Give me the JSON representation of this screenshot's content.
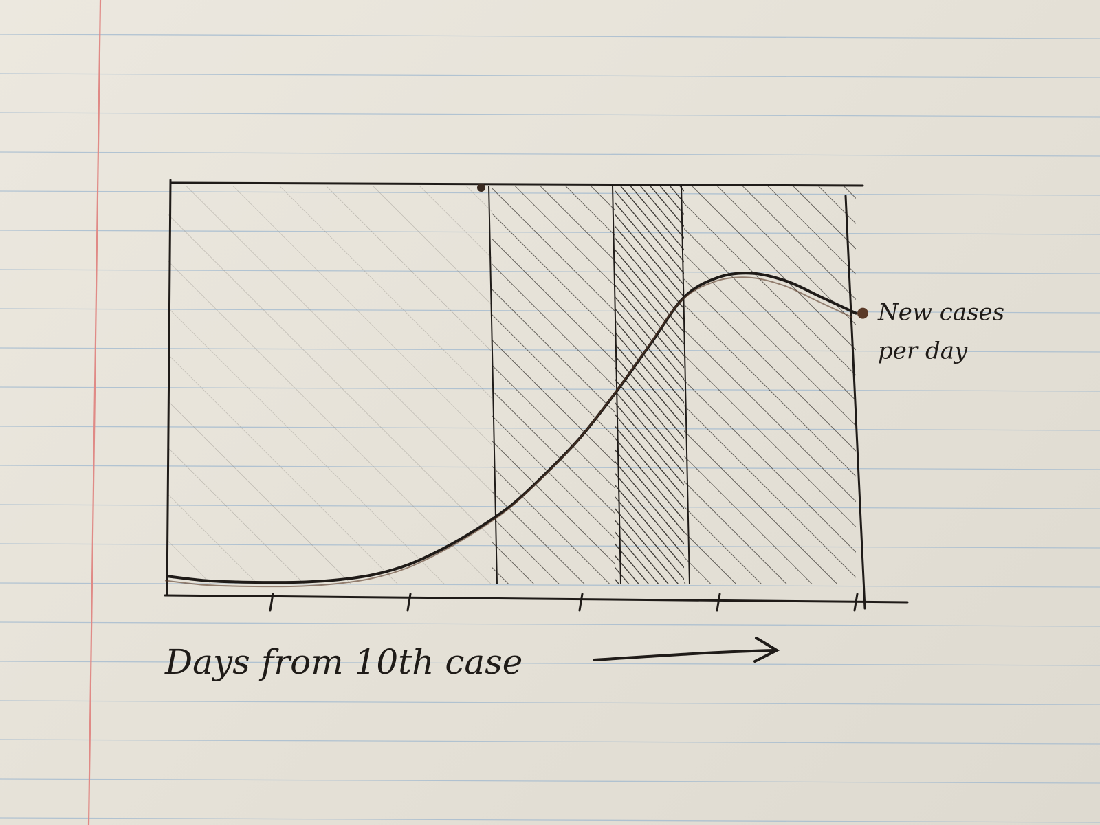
{
  "chart_data": {
    "type": "line",
    "title": "",
    "xlabel": "Days from 10th case",
    "ylabel": "",
    "xlim": [
      0,
      10
    ],
    "ylim": [
      0,
      10
    ],
    "grid": false,
    "series": [
      {
        "name": "New cases per day",
        "x": [
          0,
          0.5,
          1,
          1.5,
          2,
          2.5,
          3,
          3.5,
          4,
          4.5,
          5,
          5.5,
          6,
          6.5,
          7,
          7.5,
          8,
          8.5,
          9,
          9.5,
          10
        ],
        "y": [
          0.2,
          0.1,
          0.06,
          0.05,
          0.06,
          0.12,
          0.25,
          0.5,
          0.9,
          1.4,
          2.0,
          2.8,
          3.7,
          4.8,
          6.0,
          7.2,
          7.7,
          7.8,
          7.6,
          7.2,
          6.8
        ]
      }
    ],
    "shaded_regions": [
      {
        "x": [
          0,
          4.7
        ],
        "density": "light"
      },
      {
        "x": [
          4.7,
          6.5
        ],
        "density": "medium"
      },
      {
        "x": [
          6.5,
          7.5
        ],
        "density": "dense"
      },
      {
        "x": [
          7.5,
          10
        ],
        "density": "medium"
      }
    ],
    "x_ticks": [
      1.5,
      3.5,
      6,
      8,
      10
    ],
    "ink_color": "#1f1b18",
    "accent_ink": "#5a3a28"
  }
}
